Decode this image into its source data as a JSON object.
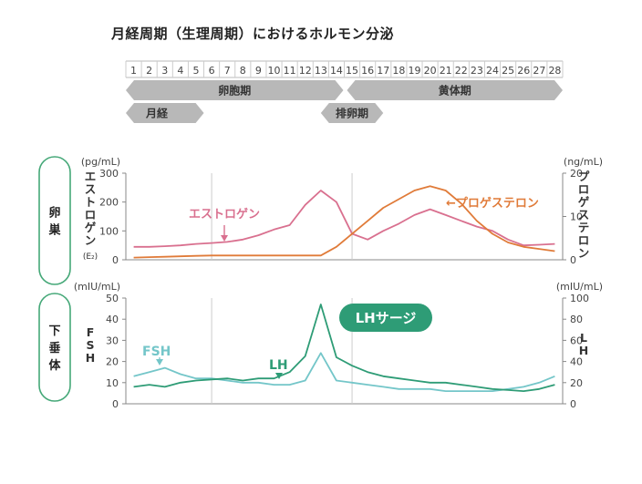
{
  "title": "月経周期（生理周期）におけるホルモン分泌",
  "colors": {
    "estrogen": "#d9708f",
    "progesterone": "#e07b39",
    "fsh": "#74c6c9",
    "lh": "#2e9c76",
    "phase_arrow": "#b8b8b8",
    "menses_text": "#e2161c",
    "organ_outline": "#45a878"
  },
  "chart_data": {
    "days": [
      1,
      2,
      3,
      4,
      5,
      6,
      7,
      8,
      9,
      10,
      11,
      12,
      13,
      14,
      15,
      16,
      17,
      18,
      19,
      20,
      21,
      22,
      23,
      24,
      25,
      26,
      27,
      28
    ],
    "phases": [
      {
        "label": "卵胞期",
        "start": 0.5,
        "end": 14.5,
        "row": 1
      },
      {
        "label": "黄体期",
        "start": 14.5,
        "end": 28.5,
        "row": 1
      },
      {
        "label": "月経",
        "start": 0.5,
        "end": 5.5,
        "row": 2
      },
      {
        "label": "排卵期",
        "start": 13,
        "end": 17,
        "row": 2
      }
    ],
    "ovary": {
      "organ_label": "卵巣",
      "left_axis": {
        "unit": "(pg/mL)",
        "label": "エストロゲン",
        "sub": "(E₂)",
        "ticks": [
          0,
          100,
          200,
          300
        ],
        "range": [
          0,
          300
        ]
      },
      "right_axis": {
        "unit": "(ng/mL)",
        "label": "プロゲステロン",
        "ticks": [
          0,
          10,
          20
        ],
        "range": [
          0,
          20
        ]
      },
      "series": [
        {
          "name": "エストロゲン",
          "axis": "left",
          "values": [
            45,
            45,
            47,
            50,
            55,
            58,
            62,
            70,
            85,
            105,
            120,
            190,
            240,
            200,
            90,
            70,
            100,
            125,
            155,
            175,
            155,
            135,
            115,
            100,
            70,
            50,
            52,
            55
          ]
        },
        {
          "name": "プロゲステロン",
          "axis": "right",
          "values": [
            0.5,
            0.6,
            0.7,
            0.8,
            0.9,
            1,
            1,
            1,
            1,
            1,
            1,
            1,
            1,
            3,
            6,
            9,
            12,
            14,
            16,
            17,
            16,
            13,
            9,
            6,
            4,
            3,
            2.5,
            2
          ]
        }
      ],
      "annotations": [
        {
          "text": "エストロゲン",
          "series": "エストロゲン"
        },
        {
          "text": "←プロゲステロン",
          "series": "プロゲステロン"
        }
      ]
    },
    "pituitary": {
      "organ_label": "下垂体",
      "left_axis": {
        "unit": "(mIU/mL)",
        "label": "FSH",
        "ticks": [
          0,
          10,
          20,
          30,
          40,
          50
        ],
        "range": [
          0,
          50
        ]
      },
      "right_axis": {
        "unit": "(mIU/mL)",
        "label": "LH",
        "ticks": [
          0,
          20,
          40,
          60,
          80,
          100
        ],
        "range": [
          0,
          100
        ]
      },
      "series": [
        {
          "name": "FSH",
          "axis": "left",
          "values": [
            13,
            15,
            17,
            14,
            12,
            12,
            11,
            10,
            10,
            9,
            9,
            11,
            24,
            11,
            10,
            9,
            8,
            7,
            7,
            7,
            6,
            6,
            6,
            6,
            7,
            8,
            10,
            13
          ]
        },
        {
          "name": "LH",
          "axis": "right",
          "values": [
            16,
            18,
            16,
            20,
            22,
            23,
            24,
            22,
            24,
            24,
            30,
            45,
            94,
            44,
            36,
            30,
            26,
            24,
            22,
            20,
            20,
            18,
            16,
            14,
            13,
            12,
            14,
            18
          ]
        }
      ],
      "annotations": [
        {
          "text": "FSH",
          "series": "FSH"
        },
        {
          "text": "LH",
          "series": "LH"
        },
        {
          "text": "LHサージ",
          "series": "LH"
        }
      ]
    }
  }
}
